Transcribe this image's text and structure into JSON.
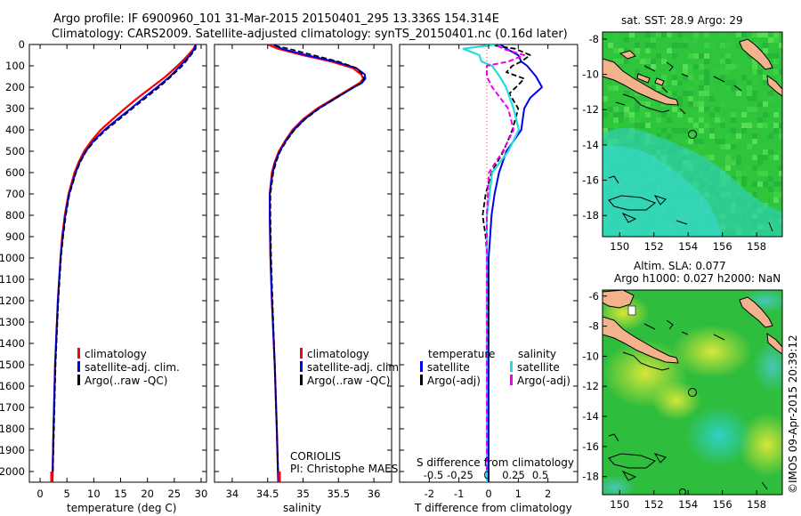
{
  "title_line1": "Argo profile: IF 6900960_101 31-Mar-2015 20150401_295 13.336S 154.314E",
  "title_line2": "Climatology: CARS2009. Satellite-adjusted climatology: synTS_20150401.nc (0.16d later)",
  "depth_ticks": [
    "0",
    "100",
    "200",
    "300",
    "400",
    "500",
    "600",
    "700",
    "800",
    "900",
    "1000",
    "1100",
    "1200",
    "1300",
    "1400",
    "1500",
    "1600",
    "1700",
    "1800",
    "1900",
    "2000"
  ],
  "panel_temperature": {
    "xlabel": "temperature (deg C)",
    "xticks": [
      "0",
      "5",
      "10",
      "15",
      "20",
      "25",
      "30"
    ],
    "legend": [
      "climatology",
      "satellite-adj. clim.",
      "Argo(..raw -QC)"
    ]
  },
  "panel_salinity": {
    "xlabel": "salinity",
    "xticks": [
      "34",
      "34.5",
      "35",
      "35.5",
      "36"
    ],
    "legend": [
      "climatology",
      "satellite-adj. clim.",
      "Argo(..raw -QC)"
    ],
    "annotation_1": "CORIOLIS",
    "annotation_2": "PI: Christophe MAES"
  },
  "panel_difference": {
    "legend_temperature_title": "temperature",
    "legend_salinity_title": "salinity",
    "legend_t": [
      "satellite",
      "Argo(-adj)"
    ],
    "legend_s": [
      "satellite",
      "Argo(-adj)"
    ],
    "s_label": "S difference from climatology",
    "s_ticks": [
      "-0.5",
      "-0.25",
      "0",
      "0.25",
      "0.5"
    ],
    "t_label": "T difference from climatology",
    "t_ticks": [
      "-2",
      "-1",
      "0",
      "1",
      "2"
    ]
  },
  "map_sst": {
    "title": "sat. SST: 28.9 Argo: 29",
    "yticks": [
      "-8",
      "-10",
      "-12",
      "-14",
      "-16",
      "-18"
    ],
    "xticks": [
      "150",
      "152",
      "154",
      "156",
      "158"
    ]
  },
  "map_sla": {
    "title_line1": "Altim. SLA: 0.077",
    "title_line2": "Argo h1000: 0.027 h2000: NaN",
    "yticks": [
      "-6",
      "-8",
      "-10",
      "-12",
      "-14",
      "-16",
      "-18"
    ],
    "xticks": [
      "150",
      "152",
      "154",
      "156",
      "158"
    ]
  },
  "stamp": "©IMOS 09-Apr-2015 20:39:12",
  "colors": {
    "climatology": "#ff0000",
    "satellite": "#0000ee",
    "argo": "#000000",
    "sat_salinity": "#22dddd",
    "argo_salinity": "#ee00ee",
    "land": "#f2b28c"
  },
  "chart_data": [
    {
      "type": "line",
      "name": "temperature profile",
      "xlim": [
        -2,
        31
      ],
      "ylim": [
        2050,
        0
      ],
      "series": [
        {
          "name": "climatology",
          "depth": [
            0,
            20,
            60,
            100,
            150,
            200,
            250,
            300,
            350,
            400,
            450,
            500,
            550,
            600,
            700,
            800,
            900,
            1000,
            1200,
            1500,
            1800,
            2050
          ],
          "values": [
            29.0,
            28.6,
            27.2,
            25.6,
            23.4,
            20.8,
            18.2,
            15.8,
            13.5,
            11.3,
            9.6,
            8.2,
            7.2,
            6.4,
            5.3,
            4.6,
            4.1,
            3.8,
            3.3,
            2.8,
            2.5,
            2.3
          ]
        },
        {
          "name": "satellite-adj. clim.",
          "depth": [
            0,
            20,
            60,
            100,
            150,
            200,
            250,
            300,
            350,
            400,
            450,
            500,
            550,
            600,
            700,
            800,
            900,
            1000,
            1200,
            1500,
            1800,
            2050
          ],
          "values": [
            29.0,
            28.8,
            27.6,
            26.1,
            24.2,
            21.8,
            19.3,
            16.9,
            14.4,
            12.0,
            10.0,
            8.5,
            7.4,
            6.6,
            5.4,
            4.7,
            4.2,
            3.8,
            3.3,
            2.8,
            2.5,
            2.3
          ]
        },
        {
          "name": "Argo(..raw -QC)",
          "depth": [
            5,
            20,
            60,
            100,
            150,
            200,
            250,
            300,
            350,
            400,
            450,
            500,
            550,
            600,
            700,
            800,
            900,
            1000,
            1200,
            1500,
            1800,
            2000
          ],
          "values": [
            29.0,
            29.0,
            27.8,
            26.5,
            24.4,
            22.2,
            19.7,
            17.2,
            14.8,
            12.3,
            10.2,
            8.6,
            7.5,
            6.7,
            5.5,
            4.8,
            4.3,
            3.9,
            3.4,
            2.9,
            2.6,
            2.4
          ]
        }
      ]
    },
    {
      "type": "line",
      "name": "salinity profile",
      "xlim": [
        33.75,
        36.25
      ],
      "ylim": [
        2050,
        0
      ],
      "series": [
        {
          "name": "climatology",
          "depth": [
            0,
            20,
            50,
            80,
            110,
            140,
            160,
            180,
            200,
            250,
            300,
            350,
            400,
            450,
            500,
            550,
            600,
            700,
            800,
            1000,
            1200,
            1500,
            1800,
            2050
          ],
          "values": [
            34.5,
            34.65,
            35.0,
            35.4,
            35.7,
            35.82,
            35.85,
            35.8,
            35.7,
            35.45,
            35.2,
            35.0,
            34.85,
            34.75,
            34.66,
            34.6,
            34.56,
            34.53,
            34.53,
            34.54,
            34.56,
            34.6,
            34.63,
            34.65
          ]
        },
        {
          "name": "satellite-adj. clim.",
          "depth": [
            0,
            20,
            50,
            80,
            110,
            140,
            160,
            180,
            200,
            250,
            300,
            350,
            400,
            450,
            500,
            550,
            600,
            700,
            800,
            1000,
            1200,
            1500,
            1800,
            2050
          ],
          "values": [
            34.58,
            34.7,
            35.05,
            35.45,
            35.75,
            35.87,
            35.88,
            35.83,
            35.72,
            35.47,
            35.22,
            35.02,
            34.87,
            34.76,
            34.67,
            34.61,
            34.57,
            34.53,
            34.53,
            34.54,
            34.56,
            34.6,
            34.63,
            34.65
          ]
        },
        {
          "name": "Argo(..raw -QC)",
          "depth": [
            5,
            20,
            50,
            80,
            110,
            140,
            160,
            180,
            200,
            250,
            300,
            350,
            400,
            450,
            500,
            550,
            600,
            700,
            800,
            1000,
            1200,
            1500,
            1800,
            2000
          ],
          "values": [
            34.6,
            34.8,
            35.15,
            35.5,
            35.75,
            35.84,
            35.86,
            35.82,
            35.72,
            35.47,
            35.23,
            35.03,
            34.88,
            34.77,
            34.68,
            34.62,
            34.58,
            34.54,
            34.54,
            34.55,
            34.57,
            34.6,
            34.63,
            34.65
          ]
        }
      ]
    },
    {
      "type": "line",
      "name": "difference from climatology",
      "xlim": [
        -3,
        3
      ],
      "ylim": [
        2050,
        0
      ],
      "series": [
        {
          "name": "temperature satellite",
          "depth": [
            0,
            20,
            50,
            80,
            100,
            150,
            200,
            250,
            300,
            400,
            500,
            600,
            700,
            800,
            900,
            1000,
            1200,
            1500,
            2050
          ],
          "values": [
            0.4,
            0.6,
            1.0,
            1.1,
            1.3,
            1.6,
            1.8,
            1.4,
            1.2,
            1.1,
            0.6,
            0.35,
            0.2,
            0.1,
            0.05,
            0.0,
            0.0,
            0.0,
            0.0
          ]
        },
        {
          "name": "temperature Argo(-adj)",
          "depth": [
            5,
            20,
            50,
            80,
            100,
            130,
            160,
            190,
            230,
            300,
            400,
            500,
            600,
            700,
            800,
            900,
            1000,
            1200,
            1500,
            2000
          ],
          "values": [
            0.2,
            0.9,
            1.4,
            1.1,
            0.8,
            0.6,
            1.2,
            1.0,
            0.7,
            1.0,
            0.8,
            0.5,
            0.1,
            -0.1,
            -0.2,
            -0.1,
            -0.05,
            0.0,
            -0.05,
            -0.05
          ]
        },
        {
          "name": "salinity satellite",
          "depth": [
            0,
            20,
            50,
            80,
            100,
            150,
            200,
            300,
            400,
            500,
            600,
            800,
            1000,
            1500,
            2050
          ],
          "values": [
            0.08,
            -0.22,
            -0.07,
            -0.05,
            0.05,
            0.12,
            0.18,
            0.25,
            0.3,
            0.2,
            0.05,
            0.0,
            0.0,
            0.0,
            0.0
          ]
        },
        {
          "name": "salinity Argo(-adj)",
          "depth": [
            5,
            20,
            50,
            80,
            100,
            150,
            200,
            300,
            400,
            500,
            600,
            800,
            1000,
            1500,
            2000
          ],
          "values": [
            0.1,
            0.15,
            0.35,
            0.2,
            0.0,
            0.0,
            0.05,
            0.2,
            0.25,
            0.15,
            0.02,
            0.0,
            0.0,
            0.0,
            0.0
          ]
        }
      ]
    },
    {
      "type": "heatmap",
      "name": "satellite SST map",
      "xlim": [
        149,
        159.5
      ],
      "ylim": [
        -19.2,
        -7.6
      ],
      "argo_position": {
        "lon": 154.314,
        "lat": -13.336
      }
    },
    {
      "type": "heatmap",
      "name": "altimetry SLA map",
      "xlim": [
        149,
        159.5
      ],
      "ylim": [
        -19.2,
        -5.6
      ],
      "argo_position": {
        "lon": 154.314,
        "lat": -13.336
      }
    }
  ]
}
